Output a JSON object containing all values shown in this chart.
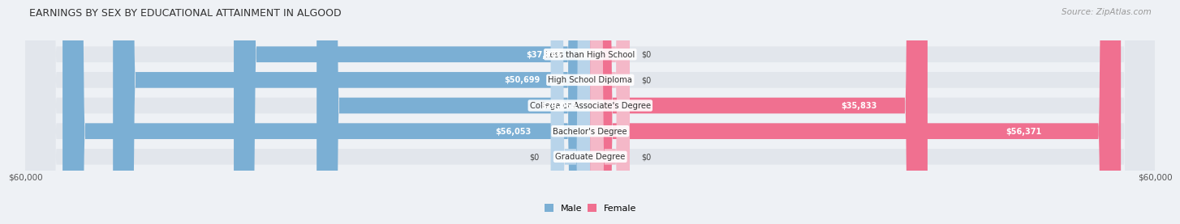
{
  "title": "EARNINGS BY SEX BY EDUCATIONAL ATTAINMENT IN ALGOOD",
  "source": "Source: ZipAtlas.com",
  "categories": [
    "Less than High School",
    "High School Diploma",
    "College or Associate's Degree",
    "Bachelor's Degree",
    "Graduate Degree"
  ],
  "male_values": [
    37866,
    50699,
    29063,
    56053,
    0
  ],
  "female_values": [
    0,
    0,
    35833,
    56371,
    0
  ],
  "male_label_inside_threshold": 8000,
  "male_color": "#7bafd4",
  "female_color": "#f07090",
  "male_light_color": "#b8d4ea",
  "female_light_color": "#f4b8c8",
  "axis_max": 60000,
  "bg_color": "#eef1f5",
  "bar_bg_color": "#e2e6ec",
  "bar_height": 0.62,
  "legend_male_color": "#7bafd4",
  "legend_female_color": "#f07090"
}
